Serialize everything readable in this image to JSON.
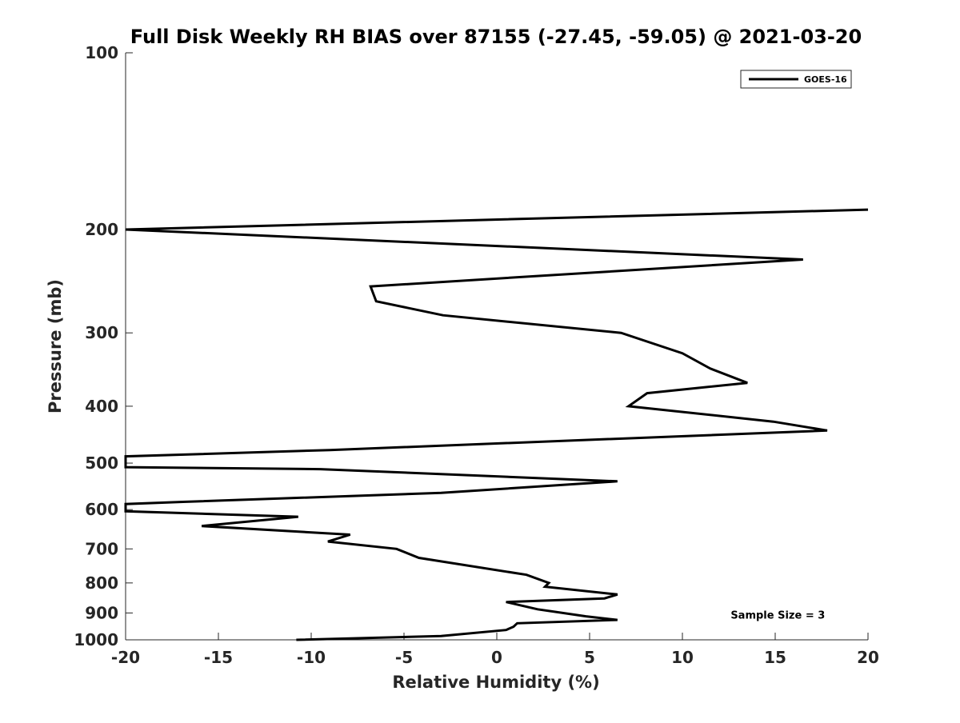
{
  "chart_data": {
    "type": "line",
    "title": "Full Disk Weekly RH BIAS over 87155 (-27.45, -59.05) @ 2021-03-20",
    "xlabel": "Relative Humidity (%)",
    "ylabel": "Pressure (mb)",
    "xlim": [
      -20,
      20
    ],
    "ylim": [
      1000,
      100
    ],
    "yscale": "log",
    "xticks": [
      -20,
      -15,
      -10,
      -5,
      0,
      5,
      10,
      15,
      20
    ],
    "yticks": [
      100,
      200,
      300,
      400,
      500,
      600,
      700,
      800,
      900,
      1000
    ],
    "grid": false,
    "legend": {
      "position": "top-right"
    },
    "line_color": "#000000",
    "series": [
      {
        "name": "GOES-16",
        "points": [
          {
            "x": 20.0,
            "y": 185
          },
          {
            "x": -20.0,
            "y": 200
          },
          {
            "x": 16.5,
            "y": 225
          },
          {
            "x": -6.8,
            "y": 250
          },
          {
            "x": -6.5,
            "y": 265
          },
          {
            "x": -2.9,
            "y": 280
          },
          {
            "x": 6.7,
            "y": 300
          },
          {
            "x": 10.0,
            "y": 325
          },
          {
            "x": 11.5,
            "y": 345
          },
          {
            "x": 13.5,
            "y": 365
          },
          {
            "x": 8.1,
            "y": 380
          },
          {
            "x": 7.1,
            "y": 400
          },
          {
            "x": 14.9,
            "y": 425
          },
          {
            "x": 17.8,
            "y": 440
          },
          {
            "x": -9.0,
            "y": 475
          },
          {
            "x": -20.0,
            "y": 487
          },
          {
            "x": -20.0,
            "y": 508
          },
          {
            "x": -9.5,
            "y": 512
          },
          {
            "x": 6.5,
            "y": 537
          },
          {
            "x": -3.0,
            "y": 562
          },
          {
            "x": -16.9,
            "y": 582
          },
          {
            "x": -20.0,
            "y": 587
          },
          {
            "x": -20.0,
            "y": 604
          },
          {
            "x": -10.7,
            "y": 617
          },
          {
            "x": -15.9,
            "y": 640
          },
          {
            "x": -7.9,
            "y": 662
          },
          {
            "x": -9.1,
            "y": 680
          },
          {
            "x": -5.4,
            "y": 700
          },
          {
            "x": -4.2,
            "y": 725
          },
          {
            "x": 1.6,
            "y": 775
          },
          {
            "x": 2.8,
            "y": 800
          },
          {
            "x": 2.6,
            "y": 812
          },
          {
            "x": 6.5,
            "y": 837
          },
          {
            "x": 5.8,
            "y": 850
          },
          {
            "x": 0.5,
            "y": 862
          },
          {
            "x": 2.2,
            "y": 887
          },
          {
            "x": 4.8,
            "y": 912
          },
          {
            "x": 6.5,
            "y": 925
          },
          {
            "x": 1.1,
            "y": 937
          },
          {
            "x": 0.9,
            "y": 950
          },
          {
            "x": 0.5,
            "y": 962
          },
          {
            "x": -3.0,
            "y": 985
          },
          {
            "x": -10.8,
            "y": 1000
          }
        ]
      }
    ],
    "annotations": [
      {
        "text": "Sample Size = 3",
        "x": 12.6,
        "y": 920
      }
    ]
  }
}
